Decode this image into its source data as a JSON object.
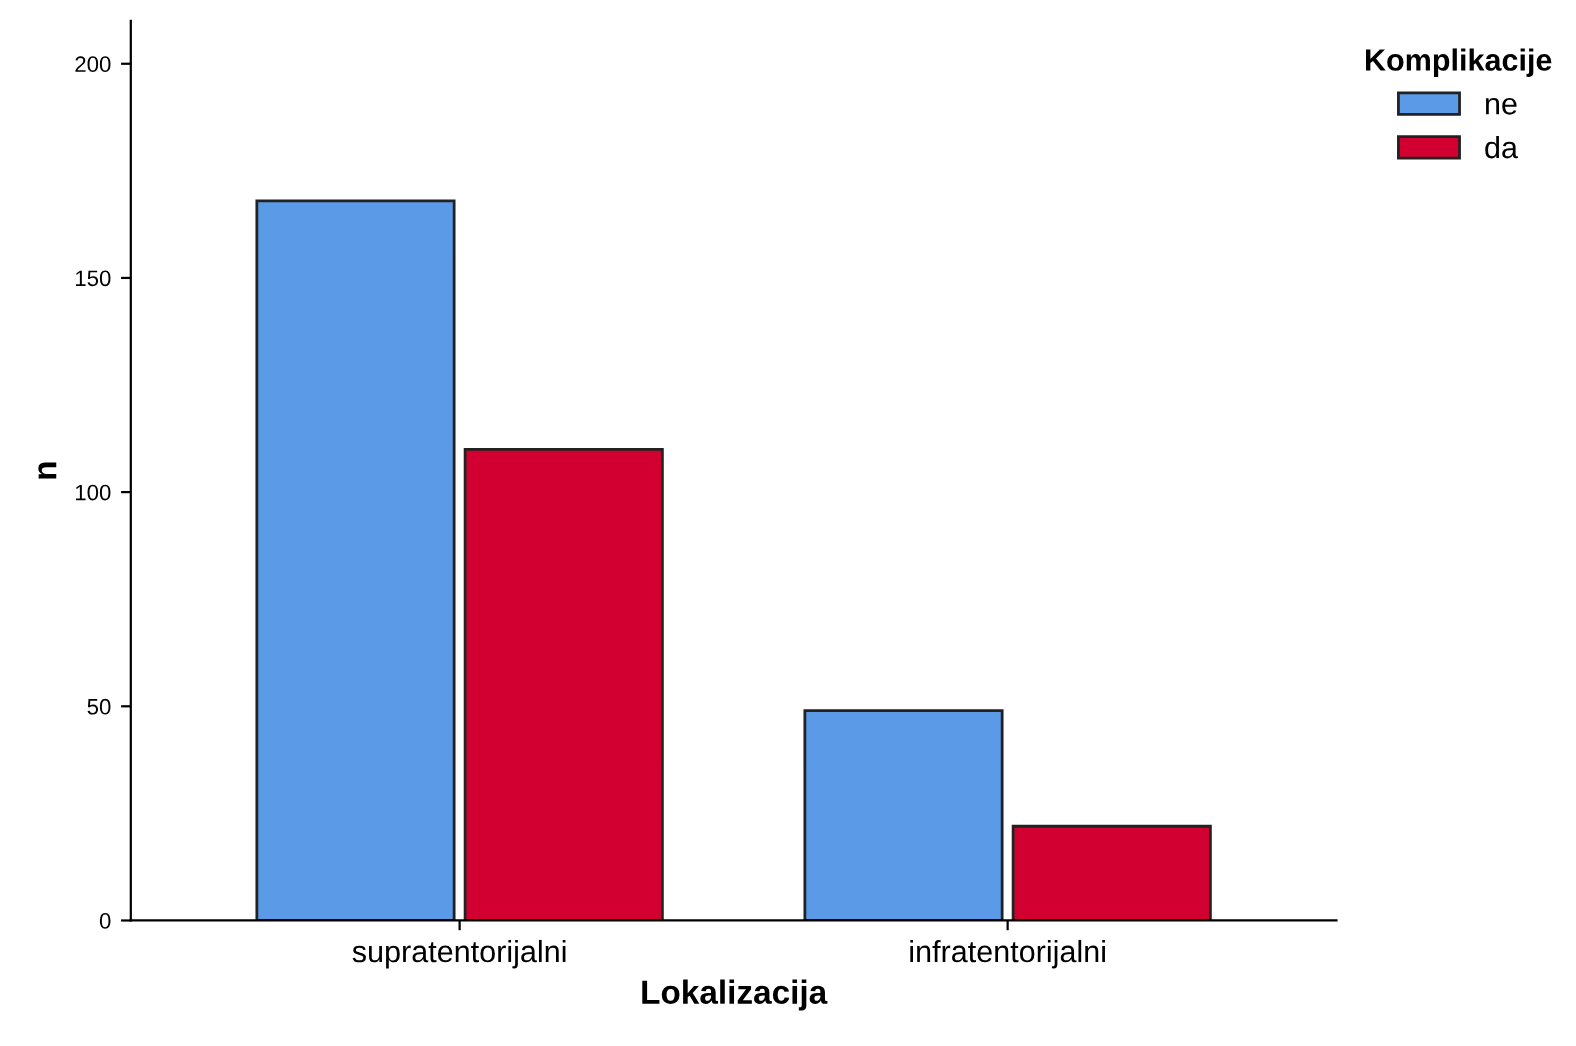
{
  "chart_data": {
    "type": "bar",
    "xlabel": "Lokalizacija",
    "ylabel": "n",
    "legend_title": "Komplikacije",
    "legend": "top right",
    "categories": [
      "supratentorijalni",
      "infratentorijalni"
    ],
    "series": [
      {
        "name": "ne",
        "color": "#5a9ae6",
        "values": [
          168,
          49
        ]
      },
      {
        "name": "da",
        "color": "#d20030",
        "values": [
          110,
          22
        ]
      }
    ],
    "ylim": [
      0,
      210
    ],
    "yticks": [
      0,
      50,
      100,
      150,
      200
    ],
    "grid": false
  }
}
